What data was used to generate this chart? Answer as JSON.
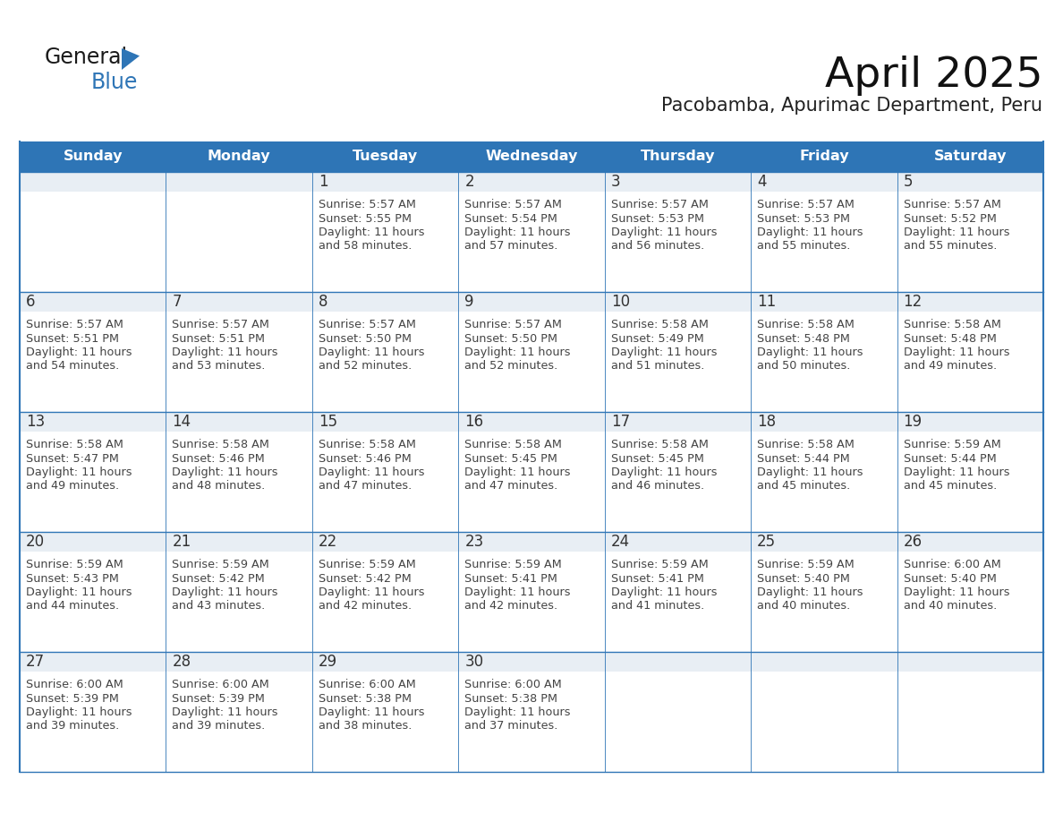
{
  "title": "April 2025",
  "subtitle": "Pacobamba, Apurimac Department, Peru",
  "header_bg": "#2e75b6",
  "header_text_color": "#ffffff",
  "row_header_bg": "#e8eef4",
  "cell_bg": "#ffffff",
  "cell_border_color": "#2e75b6",
  "day_number_color": "#333333",
  "cell_text_color": "#444444",
  "days_of_week": [
    "Sunday",
    "Monday",
    "Tuesday",
    "Wednesday",
    "Thursday",
    "Friday",
    "Saturday"
  ],
  "calendar_data": [
    [
      {
        "day": "",
        "sunrise": "",
        "sunset": "",
        "daylight": ""
      },
      {
        "day": "",
        "sunrise": "",
        "sunset": "",
        "daylight": ""
      },
      {
        "day": "1",
        "sunrise": "5:57 AM",
        "sunset": "5:55 PM",
        "daylight": "11 hours and 58 minutes."
      },
      {
        "day": "2",
        "sunrise": "5:57 AM",
        "sunset": "5:54 PM",
        "daylight": "11 hours and 57 minutes."
      },
      {
        "day": "3",
        "sunrise": "5:57 AM",
        "sunset": "5:53 PM",
        "daylight": "11 hours and 56 minutes."
      },
      {
        "day": "4",
        "sunrise": "5:57 AM",
        "sunset": "5:53 PM",
        "daylight": "11 hours and 55 minutes."
      },
      {
        "day": "5",
        "sunrise": "5:57 AM",
        "sunset": "5:52 PM",
        "daylight": "11 hours and 55 minutes."
      }
    ],
    [
      {
        "day": "6",
        "sunrise": "5:57 AM",
        "sunset": "5:51 PM",
        "daylight": "11 hours and 54 minutes."
      },
      {
        "day": "7",
        "sunrise": "5:57 AM",
        "sunset": "5:51 PM",
        "daylight": "11 hours and 53 minutes."
      },
      {
        "day": "8",
        "sunrise": "5:57 AM",
        "sunset": "5:50 PM",
        "daylight": "11 hours and 52 minutes."
      },
      {
        "day": "9",
        "sunrise": "5:57 AM",
        "sunset": "5:50 PM",
        "daylight": "11 hours and 52 minutes."
      },
      {
        "day": "10",
        "sunrise": "5:58 AM",
        "sunset": "5:49 PM",
        "daylight": "11 hours and 51 minutes."
      },
      {
        "day": "11",
        "sunrise": "5:58 AM",
        "sunset": "5:48 PM",
        "daylight": "11 hours and 50 minutes."
      },
      {
        "day": "12",
        "sunrise": "5:58 AM",
        "sunset": "5:48 PM",
        "daylight": "11 hours and 49 minutes."
      }
    ],
    [
      {
        "day": "13",
        "sunrise": "5:58 AM",
        "sunset": "5:47 PM",
        "daylight": "11 hours and 49 minutes."
      },
      {
        "day": "14",
        "sunrise": "5:58 AM",
        "sunset": "5:46 PM",
        "daylight": "11 hours and 48 minutes."
      },
      {
        "day": "15",
        "sunrise": "5:58 AM",
        "sunset": "5:46 PM",
        "daylight": "11 hours and 47 minutes."
      },
      {
        "day": "16",
        "sunrise": "5:58 AM",
        "sunset": "5:45 PM",
        "daylight": "11 hours and 47 minutes."
      },
      {
        "day": "17",
        "sunrise": "5:58 AM",
        "sunset": "5:45 PM",
        "daylight": "11 hours and 46 minutes."
      },
      {
        "day": "18",
        "sunrise": "5:58 AM",
        "sunset": "5:44 PM",
        "daylight": "11 hours and 45 minutes."
      },
      {
        "day": "19",
        "sunrise": "5:59 AM",
        "sunset": "5:44 PM",
        "daylight": "11 hours and 45 minutes."
      }
    ],
    [
      {
        "day": "20",
        "sunrise": "5:59 AM",
        "sunset": "5:43 PM",
        "daylight": "11 hours and 44 minutes."
      },
      {
        "day": "21",
        "sunrise": "5:59 AM",
        "sunset": "5:42 PM",
        "daylight": "11 hours and 43 minutes."
      },
      {
        "day": "22",
        "sunrise": "5:59 AM",
        "sunset": "5:42 PM",
        "daylight": "11 hours and 42 minutes."
      },
      {
        "day": "23",
        "sunrise": "5:59 AM",
        "sunset": "5:41 PM",
        "daylight": "11 hours and 42 minutes."
      },
      {
        "day": "24",
        "sunrise": "5:59 AM",
        "sunset": "5:41 PM",
        "daylight": "11 hours and 41 minutes."
      },
      {
        "day": "25",
        "sunrise": "5:59 AM",
        "sunset": "5:40 PM",
        "daylight": "11 hours and 40 minutes."
      },
      {
        "day": "26",
        "sunrise": "6:00 AM",
        "sunset": "5:40 PM",
        "daylight": "11 hours and 40 minutes."
      }
    ],
    [
      {
        "day": "27",
        "sunrise": "6:00 AM",
        "sunset": "5:39 PM",
        "daylight": "11 hours and 39 minutes."
      },
      {
        "day": "28",
        "sunrise": "6:00 AM",
        "sunset": "5:39 PM",
        "daylight": "11 hours and 39 minutes."
      },
      {
        "day": "29",
        "sunrise": "6:00 AM",
        "sunset": "5:38 PM",
        "daylight": "11 hours and 38 minutes."
      },
      {
        "day": "30",
        "sunrise": "6:00 AM",
        "sunset": "5:38 PM",
        "daylight": "11 hours and 37 minutes."
      },
      {
        "day": "",
        "sunrise": "",
        "sunset": "",
        "daylight": ""
      },
      {
        "day": "",
        "sunrise": "",
        "sunset": "",
        "daylight": ""
      },
      {
        "day": "",
        "sunrise": "",
        "sunset": "",
        "daylight": ""
      }
    ]
  ],
  "logo_text1": "General",
  "logo_text2": "Blue",
  "logo_text1_color": "#1a1a1a",
  "logo_text2_color": "#2e75b6",
  "triangle_color": "#2e75b6"
}
